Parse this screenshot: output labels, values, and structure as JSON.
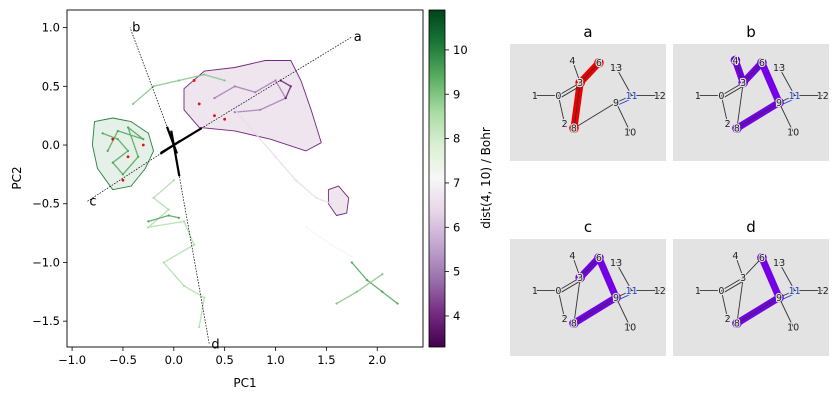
{
  "chart_data": [
    {
      "type": "scatter",
      "xlabel": "PC1",
      "ylabel": "PC2",
      "xlim": [
        -1.05,
        2.45
      ],
      "ylim": [
        -1.72,
        1.15
      ],
      "xticks": [
        -1.0,
        -0.5,
        0.0,
        0.5,
        1.0,
        1.5,
        2.0
      ],
      "yticks": [
        -1.5,
        -1.0,
        -0.5,
        0.0,
        0.5,
        1.0
      ],
      "xtick_labels": [
        "−1.0",
        "−0.5",
        "0.0",
        "0.5",
        "1.0",
        "1.5",
        "2.0"
      ],
      "ytick_labels": [
        "−1.5",
        "−1.0",
        "−0.5",
        "0.0",
        "0.5",
        "1.0"
      ],
      "grid": false,
      "colorbar": {
        "label": "dist(4, 10) / Bohr",
        "range": [
          3.3,
          10.9
        ],
        "ticks": [
          4,
          5,
          6,
          7,
          8,
          9,
          10
        ],
        "colormap": [
          "#40004b",
          "#762a83",
          "#9970ab",
          "#c2a5cf",
          "#e7d4e8",
          "#f7f7f7",
          "#d9f0d3",
          "#a6dba0",
          "#5aae61",
          "#1b7837",
          "#00441b"
        ]
      },
      "directions": [
        {
          "label": "a",
          "from": [
            0.0,
            0.0
          ],
          "to": [
            1.75,
            0.92
          ]
        },
        {
          "label": "b",
          "from": [
            0.0,
            0.0
          ],
          "to": [
            -0.43,
            1.0
          ]
        },
        {
          "label": "c",
          "from": [
            0.0,
            0.0
          ],
          "to": [
            -0.85,
            -0.48
          ]
        },
        {
          "label": "d",
          "from": [
            0.0,
            0.0
          ],
          "to": [
            0.35,
            -1.7
          ]
        }
      ],
      "density_regions": [
        {
          "color_value": 10.0,
          "outline": [
            [
              -0.78,
              0.2
            ],
            [
              -0.6,
              0.23
            ],
            [
              -0.42,
              0.2
            ],
            [
              -0.25,
              0.1
            ],
            [
              -0.2,
              -0.05
            ],
            [
              -0.28,
              -0.2
            ],
            [
              -0.42,
              -0.35
            ],
            [
              -0.6,
              -0.38
            ],
            [
              -0.75,
              -0.2
            ],
            [
              -0.8,
              0.0
            ]
          ]
        },
        {
          "color_value": 4.0,
          "outline": [
            [
              0.1,
              0.48
            ],
            [
              0.3,
              0.63
            ],
            [
              0.6,
              0.66
            ],
            [
              0.9,
              0.72
            ],
            [
              1.15,
              0.72
            ],
            [
              1.25,
              0.55
            ],
            [
              1.35,
              0.3
            ],
            [
              1.45,
              0.02
            ],
            [
              1.3,
              -0.05
            ],
            [
              0.95,
              0.05
            ],
            [
              0.6,
              0.12
            ],
            [
              0.25,
              0.15
            ],
            [
              0.1,
              0.3
            ]
          ]
        },
        {
          "color_value": 4.0,
          "outline": [
            [
              1.52,
              -0.38
            ],
            [
              1.62,
              -0.35
            ],
            [
              1.72,
              -0.45
            ],
            [
              1.7,
              -0.58
            ],
            [
              1.6,
              -0.6
            ],
            [
              1.52,
              -0.5
            ]
          ]
        }
      ],
      "trajectories": [
        {
          "color_value": 9.5,
          "points": [
            [
              -0.7,
              0.1
            ],
            [
              -0.55,
              0.05
            ],
            [
              -0.45,
              -0.05
            ],
            [
              -0.6,
              -0.15
            ],
            [
              -0.5,
              -0.25
            ],
            [
              -0.35,
              -0.1
            ],
            [
              -0.45,
              0.15
            ],
            [
              -0.3,
              0.05
            ],
            [
              -0.55,
              0.12
            ],
            [
              -0.65,
              -0.05
            ]
          ]
        },
        {
          "color_value": 9.0,
          "points": [
            [
              -0.4,
              0.35
            ],
            [
              -0.2,
              0.5
            ],
            [
              0.05,
              0.55
            ],
            [
              0.3,
              0.6
            ],
            [
              0.5,
              0.55
            ]
          ]
        },
        {
          "color_value": 8.5,
          "points": [
            [
              0.0,
              -0.3
            ],
            [
              -0.2,
              -0.45
            ],
            [
              -0.05,
              -0.55
            ],
            [
              -0.25,
              -0.7
            ],
            [
              0.1,
              -0.65
            ],
            [
              0.2,
              -0.85
            ],
            [
              -0.1,
              -1.0
            ],
            [
              0.1,
              -1.2
            ],
            [
              0.3,
              -1.3
            ],
            [
              0.25,
              -1.55
            ]
          ]
        },
        {
          "color_value": 9.5,
          "points": [
            [
              -0.25,
              -0.65
            ],
            [
              -0.05,
              -0.6
            ],
            [
              0.05,
              -0.62
            ]
          ]
        },
        {
          "color_value": 9.5,
          "points": [
            [
              1.75,
              -1.0
            ],
            [
              1.9,
              -1.15
            ],
            [
              2.05,
              -1.25
            ],
            [
              2.2,
              -1.35
            ]
          ]
        },
        {
          "color_value": 9.0,
          "points": [
            [
              1.6,
              -1.35
            ],
            [
              1.8,
              -1.25
            ],
            [
              2.05,
              -1.1
            ]
          ]
        },
        {
          "color_value": 5.0,
          "points": [
            [
              0.4,
              0.4
            ],
            [
              0.6,
              0.5
            ],
            [
              0.8,
              0.45
            ],
            [
              1.0,
              0.55
            ],
            [
              1.1,
              0.4
            ],
            [
              0.85,
              0.3
            ],
            [
              0.6,
              0.28
            ]
          ]
        },
        {
          "color_value": 3.8,
          "points": [
            [
              1.05,
              0.55
            ],
            [
              1.15,
              0.5
            ],
            [
              1.1,
              0.4
            ]
          ]
        },
        {
          "color_value": 6.5,
          "points": [
            [
              0.6,
              0.3
            ],
            [
              0.8,
              0.1
            ],
            [
              1.0,
              -0.1
            ],
            [
              1.2,
              -0.3
            ],
            [
              1.4,
              -0.45
            ],
            [
              1.55,
              -0.5
            ]
          ]
        },
        {
          "color_value": 7.2,
          "points": [
            [
              1.3,
              -0.7
            ],
            [
              1.55,
              -0.85
            ],
            [
              1.75,
              -0.95
            ]
          ]
        }
      ],
      "highlight_points": [
        [
          -0.6,
          0.05
        ],
        [
          -0.45,
          -0.1
        ],
        [
          -0.5,
          -0.3
        ],
        [
          -0.3,
          0.0
        ],
        [
          0.25,
          0.35
        ],
        [
          0.4,
          0.25
        ],
        [
          0.5,
          0.22
        ],
        [
          0.2,
          0.55
        ]
      ]
    },
    {
      "type": "diagram",
      "panels": [
        {
          "title": "a",
          "highlight_color": "#ee0000",
          "highlight_bonds": [
            [
              3,
              6
            ],
            [
              3,
              8
            ]
          ]
        },
        {
          "title": "b",
          "highlight_color": "#7300e6",
          "highlight_bonds": [
            [
              3,
              4
            ],
            [
              3,
              6
            ],
            [
              6,
              9
            ],
            [
              9,
              8
            ]
          ]
        },
        {
          "title": "c",
          "highlight_color": "#7300e6",
          "highlight_bonds": [
            [
              3,
              6
            ],
            [
              6,
              9
            ],
            [
              9,
              8
            ]
          ]
        },
        {
          "title": "d",
          "highlight_color": "#7300e6",
          "highlight_bonds": [
            [
              6,
              9
            ],
            [
              9,
              8
            ]
          ]
        }
      ],
      "atoms": [
        {
          "id": 1,
          "label": "1",
          "pos": [
            0.16,
            0.44
          ]
        },
        {
          "id": 0,
          "label": "0",
          "pos": [
            0.31,
            0.44
          ]
        },
        {
          "id": 2,
          "label": "2",
          "pos": [
            0.35,
            0.68
          ]
        },
        {
          "id": 3,
          "label": "3",
          "pos": [
            0.45,
            0.33
          ]
        },
        {
          "id": 4,
          "label": "4",
          "pos": [
            0.4,
            0.14
          ]
        },
        {
          "id": 6,
          "label": "6",
          "pos": [
            0.57,
            0.16
          ]
        },
        {
          "id": 9,
          "label": "9",
          "pos": [
            0.68,
            0.5
          ]
        },
        {
          "id": 8,
          "label": "8",
          "pos": [
            0.41,
            0.72
          ]
        },
        {
          "id": 11,
          "label": "11",
          "pos": [
            0.78,
            0.44
          ]
        },
        {
          "id": 13,
          "label": "13",
          "pos": [
            0.68,
            0.2
          ]
        },
        {
          "id": 12,
          "label": "12",
          "pos": [
            0.96,
            0.44
          ]
        },
        {
          "id": 10,
          "label": "10",
          "pos": [
            0.77,
            0.75
          ]
        }
      ],
      "bonds": [
        [
          1,
          0
        ],
        [
          0,
          2
        ],
        [
          0,
          3
        ],
        [
          3,
          4
        ],
        [
          3,
          6
        ],
        [
          3,
          8
        ],
        [
          8,
          9
        ],
        [
          9,
          11
        ],
        [
          11,
          13
        ],
        [
          11,
          12
        ],
        [
          9,
          10
        ]
      ],
      "double_bonds": [
        [
          0,
          3
        ],
        [
          9,
          11
        ]
      ],
      "colored_atoms": {
        "11": "#1f3fd6"
      }
    }
  ]
}
